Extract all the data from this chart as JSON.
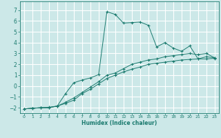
{
  "xlabel": "Humidex (Indice chaleur)",
  "background_color": "#cce8e8",
  "grid_color": "#ffffff",
  "line_color": "#1a7a6e",
  "xlim": [
    -0.5,
    23.5
  ],
  "ylim": [
    -2.5,
    7.8
  ],
  "xticks": [
    0,
    1,
    2,
    3,
    4,
    5,
    6,
    7,
    8,
    9,
    10,
    11,
    12,
    13,
    14,
    15,
    16,
    17,
    18,
    19,
    20,
    21,
    22,
    23
  ],
  "yticks": [
    -2,
    -1,
    0,
    1,
    2,
    3,
    4,
    5,
    6,
    7
  ],
  "line1_x": [
    0,
    1,
    2,
    3,
    4,
    5,
    6,
    7,
    8,
    9,
    10,
    11,
    12,
    13,
    14,
    15,
    16,
    17,
    18,
    19,
    20,
    21,
    22,
    23
  ],
  "line1_y": [
    -2.1,
    -2.05,
    -2.0,
    -2.0,
    -1.85,
    -1.6,
    -1.3,
    -0.7,
    -0.3,
    0.2,
    0.7,
    1.0,
    1.3,
    1.55,
    1.75,
    2.0,
    2.1,
    2.2,
    2.3,
    2.4,
    2.45,
    2.5,
    2.5,
    2.55
  ],
  "line2_x": [
    0,
    1,
    2,
    3,
    4,
    5,
    6,
    7,
    8,
    9,
    10,
    11,
    12,
    13,
    14,
    15,
    16,
    17,
    18,
    19,
    20,
    21,
    22,
    23
  ],
  "line2_y": [
    -2.1,
    -2.05,
    -2.0,
    -2.0,
    -1.85,
    -1.5,
    -1.1,
    -0.6,
    -0.1,
    0.4,
    1.0,
    1.2,
    1.6,
    2.0,
    2.2,
    2.4,
    2.5,
    2.7,
    2.8,
    2.9,
    3.0,
    2.9,
    3.0,
    2.6
  ],
  "line3_x": [
    0,
    1,
    2,
    3,
    4,
    5,
    6,
    7,
    8,
    9,
    10,
    11,
    12,
    13,
    14,
    15,
    16,
    17,
    18,
    19,
    20,
    21,
    22,
    23
  ],
  "line3_y": [
    -2.1,
    -2.05,
    -2.0,
    -1.95,
    -1.85,
    -0.7,
    0.3,
    0.55,
    0.75,
    1.05,
    6.85,
    6.6,
    5.8,
    5.85,
    5.9,
    5.6,
    3.6,
    4.0,
    3.5,
    3.2,
    3.7,
    2.5,
    2.7,
    2.6
  ]
}
